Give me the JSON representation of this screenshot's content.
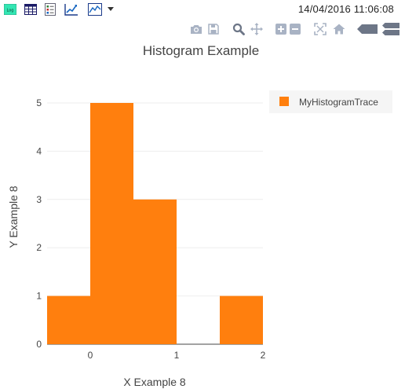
{
  "toolbar": {
    "timestamp": "14/04/2016 11:06:08",
    "icons": [
      "log-icon",
      "table-icon",
      "list-icon",
      "line-chart-icon",
      "area-chart-icon",
      "dropdown-icon"
    ],
    "log_label": "Log",
    "colors": {
      "log_bg": "#33e6b3"
    }
  },
  "modebar": {
    "icons": [
      "camera-icon",
      "save-icon",
      "zoom-icon",
      "pan-icon",
      "zoom-in-icon",
      "zoom-out-icon",
      "autoscale-icon",
      "home-icon",
      "hover-closest-icon",
      "hover-compare-icon"
    ],
    "colors": {
      "icon": "#a9b3c4",
      "icon_dark": "#6d7687"
    }
  },
  "chart_data": {
    "type": "bar",
    "title": "Histogram Example",
    "xlabel": "X Example 8",
    "ylabel": "Y Example 8",
    "xlim": [
      -0.5,
      2
    ],
    "ylim": [
      0,
      5
    ],
    "x_ticks": [
      0,
      1,
      2
    ],
    "y_ticks": [
      0,
      1,
      2,
      3,
      4,
      5
    ],
    "bins": [
      {
        "start": -0.5,
        "end": 0.0,
        "value": 1
      },
      {
        "start": 0.0,
        "end": 0.5,
        "value": 5
      },
      {
        "start": 0.5,
        "end": 1.0,
        "value": 3
      },
      {
        "start": 1.0,
        "end": 1.5,
        "value": 0
      },
      {
        "start": 1.5,
        "end": 2.0,
        "value": 1
      }
    ],
    "series": [
      {
        "name": "MyHistogramTrace",
        "color": "#ff7f0e"
      }
    ],
    "grid": true,
    "legend": "top-right"
  }
}
